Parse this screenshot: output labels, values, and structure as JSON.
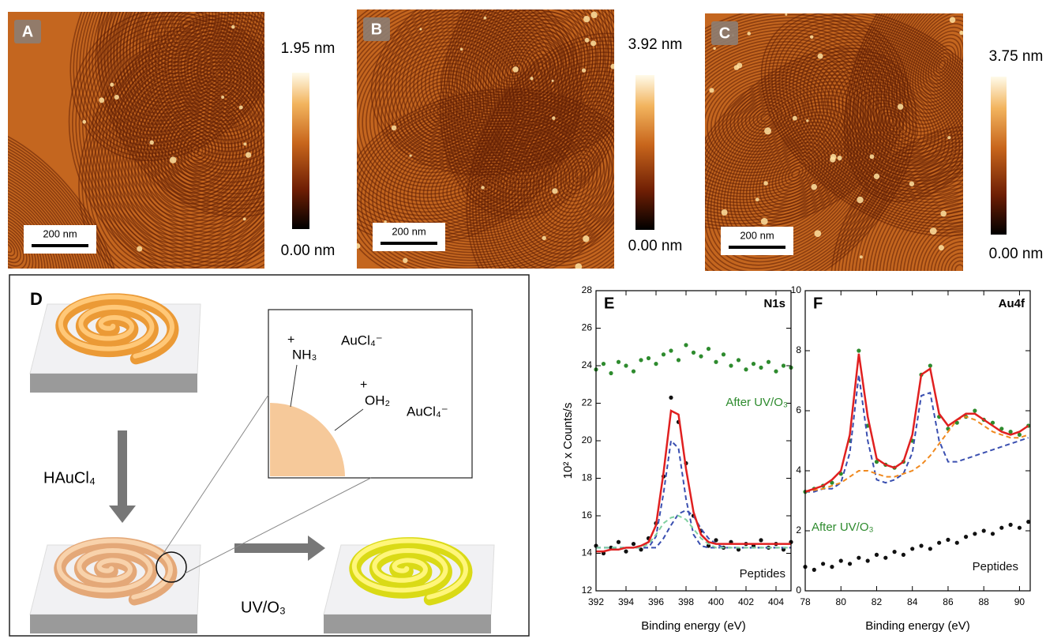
{
  "figure": {
    "panels": [
      {
        "label": "A",
        "max": "1.95 nm",
        "min": "0.00 nm",
        "scale_bar": "200 nm"
      },
      {
        "label": "B",
        "max": "3.92 nm",
        "min": "0.00 nm",
        "scale_bar": "200 nm"
      },
      {
        "label": "C",
        "max": "3.75 nm",
        "min": "0.00 nm",
        "scale_bar": "200 nm"
      }
    ],
    "schematic": {
      "label": "D",
      "reagent": "HAuCl₄",
      "treatment": "UV/O₃",
      "inset": {
        "charge_1": "+",
        "group_1": "NH₃",
        "anion_1": "AuCl₄⁻",
        "charge_2": "+",
        "group_2": "OH₂",
        "anion_2": "AuCl₄⁻"
      }
    }
  },
  "chart_data": [
    {
      "type": "scatter",
      "panel_label": "E",
      "title": "N1s",
      "x_label": "Binding energy (eV)",
      "y_label": "10² x Counts/s",
      "xlim": [
        392,
        405
      ],
      "ylim": [
        12,
        28
      ],
      "xticks": [
        392,
        394,
        396,
        398,
        400,
        402,
        404
      ],
      "yticks": [
        12,
        14,
        16,
        18,
        20,
        22,
        24,
        26,
        28
      ],
      "x": [
        392,
        392.5,
        393,
        393.5,
        394,
        394.5,
        395,
        395.5,
        396,
        396.5,
        397,
        397.5,
        398,
        398.5,
        399,
        399.5,
        400,
        400.5,
        401,
        401.5,
        402,
        402.5,
        403,
        403.5,
        404,
        404.5,
        405
      ],
      "series": [
        {
          "name": "After UV/O₃",
          "color": "#2e8b2e",
          "kind": "scatter",
          "values": [
            23.8,
            24.1,
            23.6,
            24.2,
            24.0,
            23.7,
            24.3,
            24.4,
            24.1,
            24.6,
            24.8,
            24.3,
            25.1,
            24.7,
            24.5,
            24.9,
            24.2,
            24.6,
            24.0,
            24.3,
            23.8,
            24.1,
            23.9,
            24.2,
            23.7,
            24.0,
            23.9
          ]
        },
        {
          "name": "Peptides",
          "color": "#111111",
          "kind": "scatter",
          "values": [
            14.4,
            14.0,
            14.3,
            14.6,
            14.1,
            14.5,
            14.2,
            14.8,
            15.6,
            18.1,
            22.3,
            21.0,
            18.8,
            16.0,
            15.2,
            14.4,
            14.7,
            14.3,
            14.6,
            14.2,
            14.5,
            14.4,
            14.7,
            14.3,
            14.5,
            14.2,
            14.6
          ]
        },
        {
          "color": "#3a4fb0",
          "kind": "line",
          "dash": true,
          "values": [
            14.3,
            14.3,
            14.3,
            14.3,
            14.3,
            14.3,
            14.3,
            14.3,
            14.9,
            17.2,
            20.0,
            19.6,
            16.9,
            15.0,
            14.4,
            14.3,
            14.3,
            14.3,
            14.3,
            14.3,
            14.3,
            14.3,
            14.3,
            14.3,
            14.3,
            14.3,
            14.3
          ]
        },
        {
          "color": "#3a4fb0",
          "kind": "line",
          "dash": true,
          "values": [
            14.3,
            14.3,
            14.3,
            14.3,
            14.3,
            14.3,
            14.3,
            14.3,
            14.3,
            14.8,
            15.5,
            16.1,
            16.3,
            16.0,
            15.3,
            14.8,
            14.5,
            14.3,
            14.3,
            14.3,
            14.3,
            14.3,
            14.3,
            14.3,
            14.3,
            14.3,
            14.3
          ]
        },
        {
          "color": "#7fd0a0",
          "kind": "line",
          "dash": true,
          "values": [
            14.3,
            14.3,
            14.3,
            14.3,
            14.3,
            14.3,
            14.3,
            14.5,
            15.0,
            15.6,
            15.9,
            16.0,
            15.8,
            15.3,
            14.8,
            14.5,
            14.3,
            14.3,
            14.3,
            14.3,
            14.3,
            14.3,
            14.3,
            14.3,
            14.3,
            14.3,
            14.3
          ]
        },
        {
          "color": "#e02020",
          "kind": "line",
          "values": [
            14.1,
            14.1,
            14.2,
            14.2,
            14.3,
            14.3,
            14.4,
            14.6,
            15.5,
            18.3,
            21.6,
            21.4,
            18.5,
            16.2,
            15.0,
            14.6,
            14.5,
            14.5,
            14.5,
            14.5,
            14.5,
            14.5,
            14.5,
            14.5,
            14.5,
            14.5,
            14.5
          ]
        }
      ]
    },
    {
      "type": "scatter",
      "panel_label": "F",
      "title": "Au4f",
      "x_label": "Binding energy (eV)",
      "xlim": [
        78,
        90.6
      ],
      "ylim": [
        0,
        10
      ],
      "xticks": [
        78,
        80,
        82,
        84,
        86,
        88,
        90
      ],
      "yticks": [
        0,
        2,
        4,
        6,
        8,
        10
      ],
      "x": [
        78,
        78.5,
        79,
        79.5,
        80,
        80.5,
        81,
        81.5,
        82,
        82.5,
        83,
        83.5,
        84,
        84.5,
        85,
        85.5,
        86,
        86.5,
        87,
        87.5,
        88,
        88.5,
        89,
        89.5,
        90,
        90.5
      ],
      "series": [
        {
          "name": "After UV/O₃",
          "color": "#2e8b2e",
          "kind": "scatter",
          "values": [
            3.3,
            3.4,
            3.5,
            3.6,
            3.9,
            5.0,
            8.0,
            5.5,
            4.3,
            4.2,
            4.1,
            4.3,
            5.0,
            7.2,
            7.5,
            5.8,
            5.4,
            5.6,
            5.8,
            6.0,
            5.7,
            5.6,
            5.4,
            5.3,
            5.2,
            5.5
          ]
        },
        {
          "name": "Peptides",
          "color": "#111111",
          "kind": "scatter",
          "values": [
            0.8,
            0.7,
            0.9,
            0.8,
            1.0,
            0.9,
            1.1,
            1.0,
            1.2,
            1.1,
            1.3,
            1.2,
            1.4,
            1.5,
            1.4,
            1.6,
            1.7,
            1.6,
            1.8,
            1.9,
            2.0,
            1.9,
            2.1,
            2.2,
            2.1,
            2.3
          ]
        },
        {
          "color": "#3a4fb0",
          "kind": "line",
          "dash": true,
          "values": [
            3.3,
            3.3,
            3.4,
            3.4,
            3.6,
            4.6,
            7.2,
            5.0,
            3.7,
            3.6,
            3.7,
            3.9,
            4.6,
            6.5,
            6.6,
            5.0,
            4.3,
            4.3,
            4.4,
            4.5,
            4.6,
            4.7,
            4.8,
            4.9,
            5.0,
            5.1
          ]
        },
        {
          "color": "#f08a20",
          "kind": "line",
          "dash": true,
          "values": [
            3.3,
            3.35,
            3.4,
            3.5,
            3.6,
            3.8,
            4.0,
            4.0,
            3.9,
            3.8,
            3.8,
            3.9,
            4.0,
            4.2,
            4.5,
            4.9,
            5.3,
            5.7,
            5.8,
            5.7,
            5.5,
            5.3,
            5.2,
            5.1,
            5.1,
            5.2
          ]
        },
        {
          "color": "#e02020",
          "kind": "line",
          "values": [
            3.3,
            3.4,
            3.5,
            3.7,
            4.0,
            5.2,
            7.9,
            5.8,
            4.4,
            4.2,
            4.1,
            4.3,
            5.2,
            7.2,
            7.4,
            5.9,
            5.5,
            5.7,
            5.9,
            5.9,
            5.7,
            5.5,
            5.3,
            5.2,
            5.3,
            5.5
          ]
        }
      ]
    }
  ]
}
